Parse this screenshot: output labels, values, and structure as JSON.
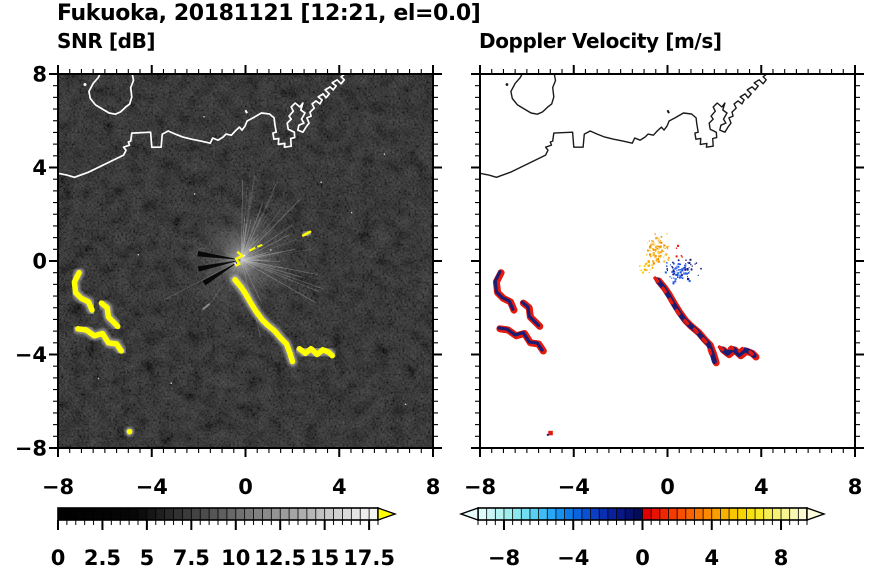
{
  "title": "Fukuoka, 20181121 [12:21, el=0.0]",
  "axes": {
    "x_tick_values": [
      -8,
      -4,
      0,
      4,
      8
    ],
    "x_tick_labels": [
      "−8",
      "−4",
      "0",
      "4",
      "8"
    ],
    "y_tick_values": [
      8,
      4,
      0,
      -4,
      -8
    ],
    "y_tick_labels": [
      "8",
      "4",
      "0",
      "−4",
      "−8"
    ],
    "minor_tick_step": 0.5
  },
  "coastline": {
    "mainland": [
      [
        -8,
        3.75
      ],
      [
        -7.6,
        3.67
      ],
      [
        -7.3,
        3.58
      ],
      [
        -6.7,
        3.8
      ],
      [
        -5.2,
        4.53
      ],
      [
        -5.1,
        4.74
      ],
      [
        -5.2,
        4.87
      ],
      [
        -4.95,
        4.96
      ],
      [
        -5.0,
        5.09
      ],
      [
        -4.9,
        5.13
      ],
      [
        -4.85,
        5.47
      ],
      [
        -4.05,
        5.51
      ],
      [
        -4.0,
        4.87
      ],
      [
        -3.6,
        4.87
      ],
      [
        -3.55,
        5.43
      ],
      [
        -3.3,
        5.56
      ],
      [
        -3.0,
        5.43
      ],
      [
        -2.67,
        5.3
      ],
      [
        -2.3,
        5.21
      ],
      [
        -1.9,
        5.13
      ],
      [
        -1.5,
        5.04
      ],
      [
        -1.4,
        5.26
      ],
      [
        -1.17,
        5.17
      ],
      [
        -0.96,
        5.3
      ],
      [
        -0.83,
        5.43
      ],
      [
        -0.6,
        5.38
      ],
      [
        -0.44,
        5.56
      ],
      [
        -0.26,
        5.73
      ],
      [
        -0.15,
        5.6
      ],
      [
        -0.02,
        5.77
      ],
      [
        0.07,
        5.99
      ],
      [
        0.32,
        6.12
      ],
      [
        0.68,
        6.33
      ],
      [
        1.03,
        6.29
      ],
      [
        1.22,
        6.12
      ],
      [
        1.25,
        5.86
      ],
      [
        1.31,
        5.51
      ],
      [
        1.17,
        5.47
      ],
      [
        1.21,
        5.21
      ],
      [
        1.42,
        5.24
      ],
      [
        1.4,
        4.99
      ],
      [
        1.68,
        5.03
      ],
      [
        1.66,
        4.87
      ],
      [
        1.95,
        4.91
      ],
      [
        1.93,
        5.24
      ],
      [
        2.1,
        5.28
      ],
      [
        2.08,
        5.51
      ],
      [
        1.82,
        5.64
      ],
      [
        1.78,
        5.9
      ],
      [
        1.95,
        6.07
      ],
      [
        1.86,
        6.2
      ],
      [
        2.04,
        6.41
      ],
      [
        1.95,
        6.59
      ],
      [
        2.12,
        6.76
      ],
      [
        2.32,
        6.59
      ],
      [
        2.45,
        6.76
      ],
      [
        2.36,
        6.46
      ],
      [
        2.54,
        6.33
      ],
      [
        2.39,
        6.07
      ],
      [
        2.49,
        5.9
      ],
      [
        2.28,
        5.81
      ],
      [
        2.23,
        5.6
      ],
      [
        2.45,
        5.51
      ],
      [
        2.58,
        5.73
      ],
      [
        2.71,
        5.9
      ],
      [
        2.62,
        6.12
      ],
      [
        2.8,
        6.2
      ],
      [
        2.75,
        6.37
      ],
      [
        2.93,
        6.54
      ],
      [
        2.84,
        6.72
      ],
      [
        3.01,
        6.85
      ],
      [
        3.18,
        6.72
      ],
      [
        3.27,
        6.89
      ],
      [
        3.1,
        7.02
      ],
      [
        3.31,
        7.15
      ],
      [
        3.44,
        6.98
      ],
      [
        3.57,
        7.15
      ],
      [
        3.4,
        7.32
      ],
      [
        3.61,
        7.45
      ],
      [
        3.74,
        7.32
      ],
      [
        3.87,
        7.49
      ],
      [
        3.7,
        7.62
      ],
      [
        3.91,
        7.75
      ],
      [
        4.08,
        7.58
      ],
      [
        4.21,
        7.75
      ],
      [
        4.08,
        7.88
      ],
      [
        4.3,
        8.05
      ]
    ],
    "island": [
      [
        -6.18,
        8.05
      ],
      [
        -6.28,
        7.85
      ],
      [
        -6.5,
        7.6
      ],
      [
        -6.68,
        7.25
      ],
      [
        -6.62,
        6.95
      ],
      [
        -6.4,
        6.68
      ],
      [
        -6.1,
        6.5
      ],
      [
        -5.82,
        6.33
      ],
      [
        -5.55,
        6.28
      ],
      [
        -5.33,
        6.38
      ],
      [
        -5.12,
        6.58
      ],
      [
        -4.94,
        6.72
      ],
      [
        -4.85,
        7.02
      ],
      [
        -4.9,
        7.42
      ],
      [
        -4.78,
        7.72
      ],
      [
        -4.84,
        8.05
      ]
    ],
    "island_dot": [
      -6.85,
      7.55
    ],
    "comma_mark": [
      0.0,
      6.45
    ]
  },
  "chart_data": [
    {
      "type": "heatmap",
      "title": "SNR [dB]",
      "xlim": [
        -8,
        8
      ],
      "ylim": [
        -8,
        8
      ],
      "xticks": [
        -8,
        -4,
        0,
        4,
        8
      ],
      "yticks": [
        -8,
        -4,
        0,
        4,
        8
      ],
      "minor_tick_step": 0.5,
      "background": "#000000",
      "description": "PPI radar scan: dark gray speckle = weak returns, white coastline, yellow = SNR above scale max",
      "radar_site_xy": [
        -0.18,
        0.05
      ],
      "colorbar": {
        "range": [
          0,
          18
        ],
        "tick_values": [
          0,
          2.5,
          5,
          7.5,
          10,
          12.5,
          15,
          17.5
        ],
        "tick_labels": [
          "0",
          "2.5",
          "5",
          "7.5",
          "10",
          "12.5",
          "15",
          "17.5"
        ],
        "overflow_arrow_color": "#ffff00",
        "segment_colors": [
          "#020202",
          "#020202",
          "#030303",
          "#030303",
          "#040404",
          "#040404",
          "#050505",
          "#060606",
          "#070707",
          "#0d0d0d",
          "#161616",
          "#1f1f1f",
          "#282828",
          "#313131",
          "#3a3a3a",
          "#434343",
          "#4c4c4c",
          "#555555",
          "#5e5e5e",
          "#676767",
          "#707070",
          "#787878",
          "#818181",
          "#8a8a8a",
          "#939393",
          "#9c9c9c",
          "#a5a5a5",
          "#aeaeae",
          "#b7b7b7",
          "#c0c0c0",
          "#c9c9c9",
          "#d2d2d2",
          "#dbdbdb",
          "#e4e4e4",
          "#ededed",
          "#f6f6f6"
        ]
      },
      "strong_echoes": {
        "color": "#ffff00",
        "halo_color": "#e6e6e6",
        "cluster_west": [
          [
            [
              -7.1,
              -0.5
            ],
            [
              -7.3,
              -0.9
            ],
            [
              -7.25,
              -1.35
            ],
            [
              -7.0,
              -1.6
            ],
            [
              -6.7,
              -1.75
            ],
            [
              -6.55,
              -2.1
            ]
          ],
          [
            [
              -6.15,
              -1.8
            ],
            [
              -5.9,
              -2.0
            ],
            [
              -5.85,
              -2.4
            ],
            [
              -5.6,
              -2.65
            ],
            [
              -5.45,
              -2.8
            ]
          ],
          [
            [
              -7.15,
              -2.9
            ],
            [
              -6.8,
              -2.95
            ],
            [
              -6.45,
              -3.2
            ],
            [
              -6.1,
              -3.1
            ],
            [
              -5.85,
              -3.5
            ],
            [
              -5.5,
              -3.55
            ],
            [
              -5.3,
              -3.85
            ]
          ]
        ],
        "chain_main": [
          [
            -0.45,
            -0.8
          ],
          [
            -0.2,
            -1.1
          ],
          [
            0.0,
            -1.4
          ],
          [
            0.2,
            -1.75
          ],
          [
            0.45,
            -2.15
          ],
          [
            0.7,
            -2.5
          ],
          [
            0.95,
            -2.75
          ],
          [
            1.25,
            -3.0
          ],
          [
            1.5,
            -3.3
          ],
          [
            1.75,
            -3.55
          ],
          [
            1.9,
            -3.95
          ],
          [
            2.0,
            -4.3
          ]
        ],
        "chain_tail": [
          [
            2.3,
            -3.75
          ],
          [
            2.55,
            -3.95
          ],
          [
            2.8,
            -3.75
          ],
          [
            3.05,
            -4.0
          ],
          [
            3.3,
            -3.8
          ],
          [
            3.55,
            -3.9
          ],
          [
            3.7,
            -4.05
          ]
        ],
        "small_dash": [
          [
            2.46,
            1.09
          ],
          [
            2.76,
            1.25
          ]
        ],
        "small_dot": [
          -4.95,
          -7.3
        ]
      },
      "noise_rays": {
        "count": 64,
        "seed": 13,
        "min_len": 16,
        "max_len": 88
      },
      "white_specks": [
        [
          1.05,
          0.5
        ],
        [
          -4.6,
          0.3
        ],
        [
          4.5,
          2.1
        ],
        [
          -3.2,
          -5.2
        ],
        [
          5.9,
          4.6
        ],
        [
          -6.3,
          -5.0
        ],
        [
          3.2,
          3.4
        ],
        [
          -2.2,
          2.9
        ],
        [
          6.8,
          -6.1
        ],
        [
          -1.8,
          6.2
        ]
      ],
      "gray_dash": [
        [
          -1.8,
          -2.05
        ],
        [
          -1.55,
          -1.85
        ]
      ]
    },
    {
      "type": "heatmap",
      "title": "Doppler Velocity [m/s]",
      "xlim": [
        -8,
        8
      ],
      "ylim": [
        -8,
        8
      ],
      "xticks": [
        -8,
        -4,
        0,
        4,
        8
      ],
      "yticks": [
        -8,
        -4,
        0,
        4,
        8
      ],
      "minor_tick_step": 0.5,
      "background": "#ffffff",
      "description": "Same echoes colored by radial velocity: red/orange receding, blue/navy approaching",
      "colorbar": {
        "range": [
          -9.5,
          9.5
        ],
        "tick_values": [
          -8,
          -4,
          0,
          4,
          8
        ],
        "tick_labels": [
          "−8",
          "−4",
          "0",
          "4",
          "8"
        ],
        "under_arrow_color": "#e6fcfc",
        "over_arrow_color": "#fcfbdd",
        "segment_colors": [
          "#dcfbfb",
          "#c9f7f7",
          "#b5f2f2",
          "#a0eded",
          "#8ae7ee",
          "#72ddf0",
          "#58cef2",
          "#3fbcf4",
          "#28a8f4",
          "#1691f0",
          "#0d7ae8",
          "#0a64de",
          "#0a50d2",
          "#0a3ec4",
          "#0a2eb2",
          "#09219e",
          "#071786",
          "#06106e",
          "#040b58",
          "#e00000",
          "#e91200",
          "#f02600",
          "#f53a00",
          "#f84e00",
          "#fa6200",
          "#fa7600",
          "#fa8a00",
          "#fa9e00",
          "#fab200",
          "#fac600",
          "#f9d400",
          "#f8e00e",
          "#f7e928",
          "#f6ee4e",
          "#f6f172",
          "#f7f492",
          "#f9f7b2",
          "#fbfad0"
        ]
      },
      "echo_colors": {
        "red": "#e51a0e",
        "navy": "#1c1c72"
      },
      "speck_clusters": [
        {
          "name": "orange-cluster",
          "center": [
            -0.45,
            0.55
          ],
          "spread": [
            0.36,
            0.45
          ],
          "n": 95,
          "colors": [
            "#f5a71f",
            "#f9b32a",
            "#e89400",
            "#fad35a"
          ],
          "seed": 5
        },
        {
          "name": "blue-cluster",
          "center": [
            0.38,
            -0.45
          ],
          "spread": [
            0.4,
            0.36
          ],
          "n": 80,
          "colors": [
            "#2e62e8",
            "#1e4edc",
            "#4a86f0",
            "#141e8c"
          ],
          "seed": 9
        },
        {
          "name": "gold-cluster",
          "center": [
            -1.0,
            -0.3
          ],
          "spread": [
            0.24,
            0.2
          ],
          "n": 16,
          "colors": [
            "#fac800",
            "#f0b400"
          ],
          "seed": 3
        },
        {
          "name": "navy-sparse",
          "center": [
            1.05,
            -0.2
          ],
          "spread": [
            0.3,
            0.26
          ],
          "n": 10,
          "colors": [
            "#141e8c",
            "#0a1464"
          ],
          "seed": 21
        },
        {
          "name": "red-sparse",
          "center": [
            0.35,
            0.35
          ],
          "spread": [
            0.26,
            0.3
          ],
          "n": 5,
          "colors": [
            "#e51a0e"
          ],
          "seed": 31
        }
      ],
      "red_dot": [
        -5.0,
        -7.35
      ]
    }
  ]
}
